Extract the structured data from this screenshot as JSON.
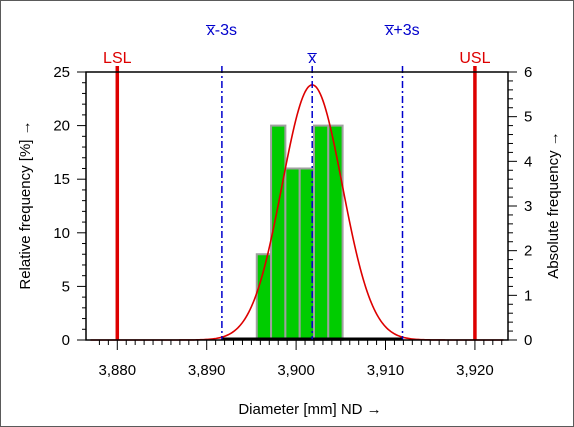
{
  "chart_data": {
    "type": "bar",
    "title": "",
    "xlabel": "Diameter [mm]  ND →",
    "ylabel_left": "Relative frequency  [%] →",
    "ylabel_right": "Absolute frequency →",
    "xlim": [
      3.8765,
      3.9237
    ],
    "ylim_left": [
      0,
      25
    ],
    "ylim_right": [
      0,
      6
    ],
    "x_ticks": [
      3.88,
      3.89,
      3.9,
      3.91,
      3.92
    ],
    "x_tick_labels": [
      "3,880",
      "3,890",
      "3,900",
      "3,910",
      "3,920"
    ],
    "y_left_ticks": [
      0,
      5,
      10,
      15,
      20,
      25
    ],
    "y_left_tick_labels": [
      "0",
      "5",
      "10",
      "15",
      "20",
      "25"
    ],
    "y_right_ticks": [
      0,
      1,
      2,
      3,
      4,
      5,
      6
    ],
    "y_right_tick_labels": [
      "0",
      "1",
      "2",
      "3",
      "4",
      "5",
      "6"
    ],
    "bin_width": 0.0016,
    "bins": [
      {
        "start": 3.8956,
        "rel_pct": 8,
        "abs": 2
      },
      {
        "start": 3.8972,
        "rel_pct": 20,
        "abs": 5
      },
      {
        "start": 3.8988,
        "rel_pct": 16,
        "abs": 4
      },
      {
        "start": 3.9004,
        "rel_pct": 16,
        "abs": 4
      },
      {
        "start": 3.902,
        "rel_pct": 20,
        "abs": 5
      },
      {
        "start": 3.9036,
        "rel_pct": 20,
        "abs": 5
      }
    ],
    "reference_lines": [
      {
        "label": "LSL",
        "x": 3.88,
        "color": "#dd0000",
        "style": "solid"
      },
      {
        "label": "USL",
        "x": 3.92,
        "color": "#dd0000",
        "style": "solid"
      },
      {
        "label": "x̅-3s",
        "x": 3.8917,
        "color": "#0000cc",
        "style": "dashdot"
      },
      {
        "label": "x̅",
        "x": 3.9018,
        "color": "#0000cc",
        "style": "dashdot"
      },
      {
        "label": "x̅+3s",
        "x": 3.9119,
        "color": "#0000cc",
        "style": "dashdot"
      }
    ],
    "normal_curve": {
      "mean": 3.9018,
      "sd": 0.00337,
      "peak_rel_pct": 23.8,
      "color": "#dd0000"
    },
    "grid": false,
    "colors": {
      "bar_fill": "#00cc00",
      "bar_edge": "#a0a0a0",
      "spec_limit": "#dd0000",
      "stat_line": "#0000cc",
      "axis": "#000000"
    }
  }
}
